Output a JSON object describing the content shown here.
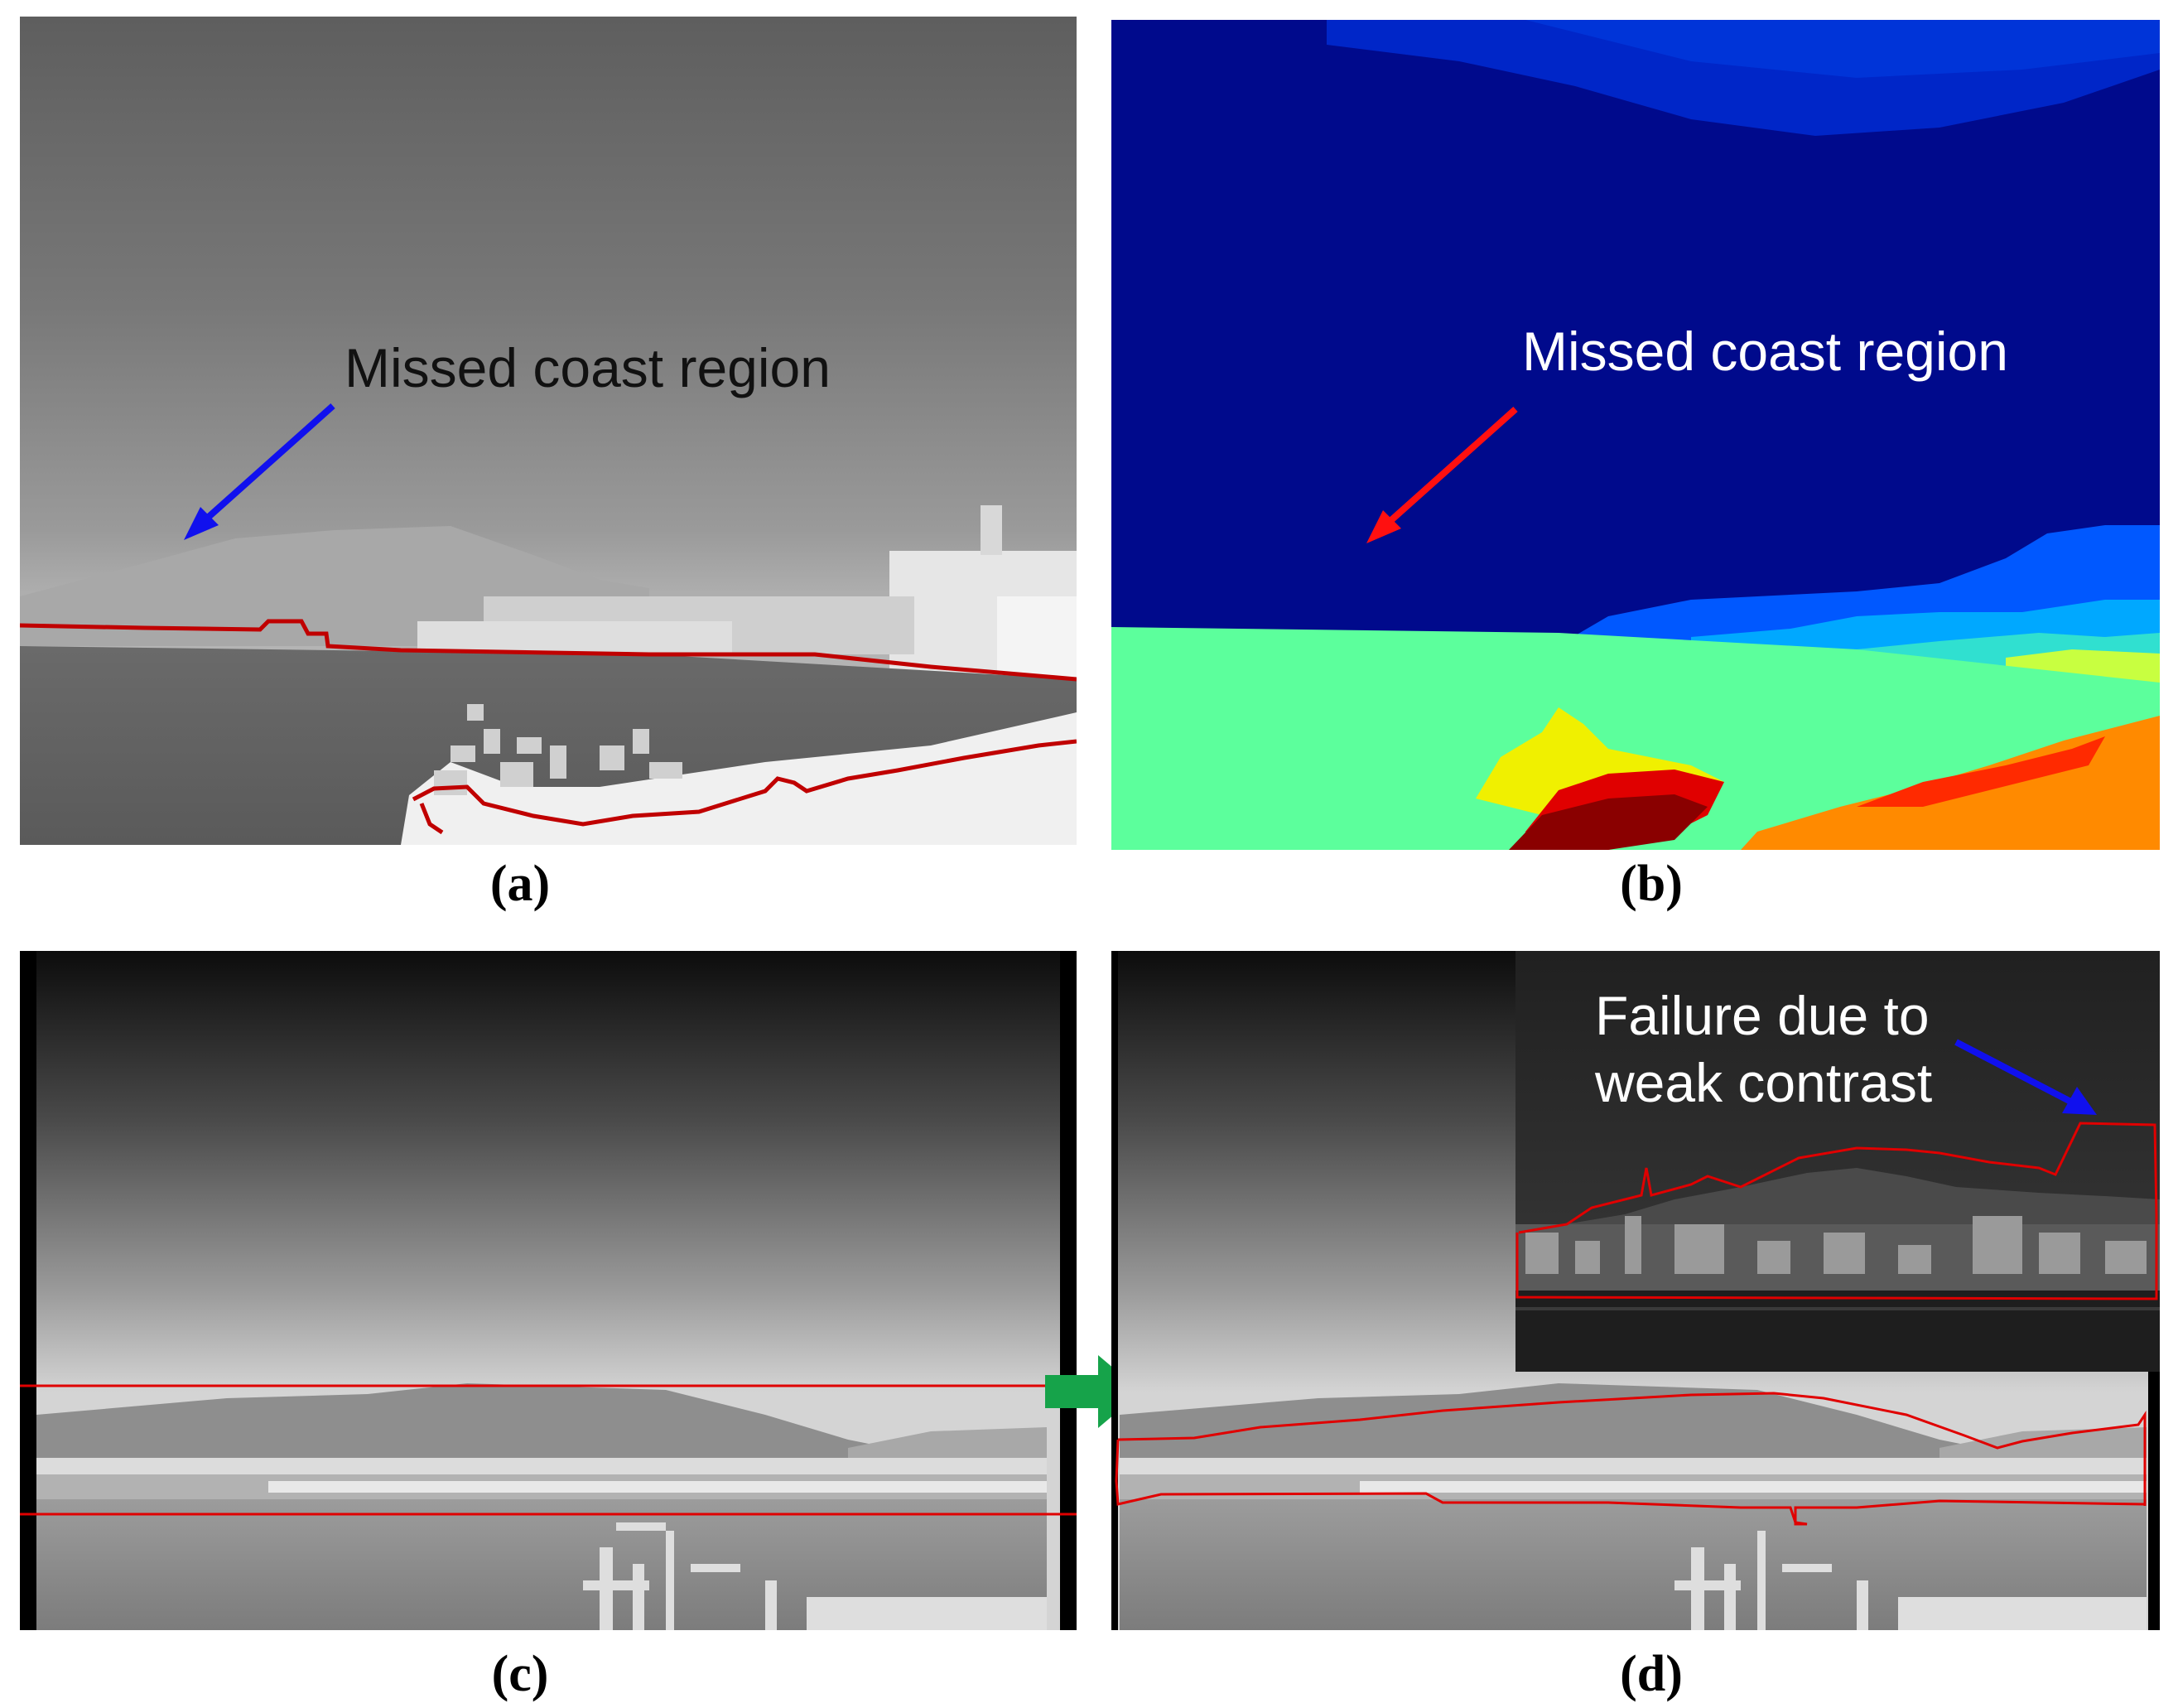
{
  "panels": {
    "a": {
      "caption": "(a)",
      "annotation": "Missed coast region",
      "arrow_color": "#1010ee"
    },
    "b": {
      "caption": "(b)",
      "annotation": "Missed coast region",
      "arrow_color": "#ff1010"
    },
    "c": {
      "caption": "(c)"
    },
    "d": {
      "caption": "(d)",
      "annotation_lines": [
        "Failure due to",
        "weak contrast"
      ],
      "arrow_color": "#1010ee"
    }
  },
  "colors": {
    "contour": "#c00000",
    "contour_bright": "#e00000",
    "transition_arrow": "#16a34a",
    "segment_sky": "#000a8c",
    "segment_sea": "#5cff9c",
    "segment_land_orange": "#ff8a00",
    "segment_dark_red": "#8a0000",
    "segment_yellow": "#f0f000"
  },
  "icons": {
    "transition": "right-arrow-icon"
  }
}
